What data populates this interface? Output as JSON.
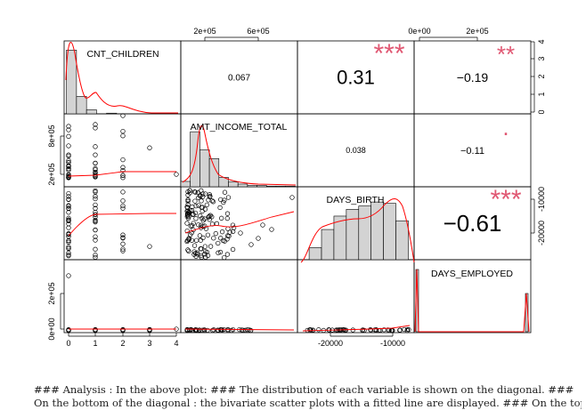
{
  "chart_data": {
    "type": "scatter",
    "variables": [
      "CNT_CHILDREN",
      "AMT_INCOME_TOTAL",
      "DAYS_BIRTH",
      "DAYS_EMPLOYED"
    ],
    "correlations": [
      {
        "pair": "CNT_CHILDREN-AMT_INCOME_TOTAL",
        "value": "0.067",
        "stars": ""
      },
      {
        "pair": "CNT_CHILDREN-DAYS_BIRTH",
        "value": "0.31",
        "stars": "***"
      },
      {
        "pair": "CNT_CHILDREN-DAYS_EMPLOYED",
        "value": "−0.19",
        "stars": "**"
      },
      {
        "pair": "AMT_INCOME_TOTAL-DAYS_BIRTH",
        "value": "0.038",
        "stars": ""
      },
      {
        "pair": "AMT_INCOME_TOTAL-DAYS_EMPLOYED",
        "value": "−0.11",
        "stars": "."
      },
      {
        "pair": "DAYS_BIRTH-DAYS_EMPLOYED",
        "value": "−0.61",
        "stars": "***"
      }
    ],
    "ticks": {
      "top_col2": [
        "2e+05",
        "6e+05"
      ],
      "top_col4": [
        "0e+00",
        "2e+05"
      ],
      "right_row1": [
        "4",
        "3",
        "2",
        "1",
        "0"
      ],
      "right_row3": [
        "-10000",
        "-20000"
      ],
      "left_row2": [
        "8e+05",
        "2e+05"
      ],
      "left_row4": [
        "2e+05",
        "0e+00"
      ],
      "bottom_col1": [
        "0",
        "1",
        "2",
        "3",
        "4"
      ],
      "bottom_col3": [
        "-20000",
        "-10000"
      ]
    },
    "histograms": {
      "CNT_CHILDREN": [
        0.95,
        0.26,
        0.06,
        0.0,
        0.01
      ],
      "AMT_INCOME_TOTAL": [
        0.08,
        0.82,
        0.55,
        0.42,
        0.14,
        0.07,
        0.04,
        0.02,
        0.02,
        0.01,
        0.01,
        0.01
      ],
      "DAYS_BIRTH": [
        0.18,
        0.45,
        0.65,
        0.75,
        0.8,
        0.86,
        0.84,
        0.58
      ],
      "DAYS_EMPLOYED": [
        0.9,
        0.0,
        0.9
      ]
    },
    "grid": false,
    "colors": {
      "star": "#e05772",
      "smooth": "#ff0000",
      "hist_fill": "#d3d3d3"
    }
  },
  "caption": {
    "line1": "### Analysis : In the above plot: ### The distribution of each variable is shown on the diagonal. ###",
    "line2": "On the bottom of the diagonal : the bivariate scatter plots with a fitted line are displayed. ### On the top"
  }
}
